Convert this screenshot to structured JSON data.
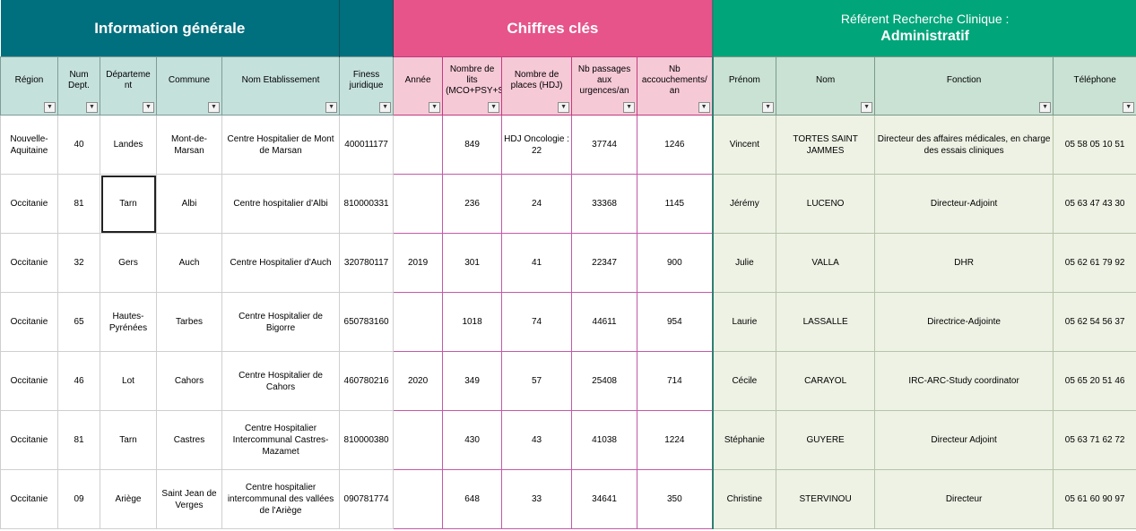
{
  "sections": {
    "info": "Information générale",
    "chiffres": "Chiffres clés",
    "referent_line1": "Référent Recherche Clinique :",
    "referent_line2": "Administratif"
  },
  "headers": {
    "region": "Région",
    "num_dept": "Num Dept.",
    "departement": "Départeme nt",
    "commune": "Commune",
    "etablissement": "Nom Etablissement",
    "finess": "Finess juridique",
    "annee": "Année",
    "lits": "Nombre de lits (MCO+PSY+SSR)",
    "places": "Nombre de places (HDJ)",
    "passages": "Nb passages aux urgences/an",
    "accouchements": "Nb accouchements/ an",
    "prenom": "Prénom",
    "nom": "Nom",
    "fonction": "Fonction",
    "telephone": "Téléphone"
  },
  "filter_glyph": "▼",
  "rows": [
    {
      "region": "Nouvelle-Aquitaine",
      "num_dept": "40",
      "departement": "Landes",
      "commune": "Mont-de-Marsan",
      "etablissement": "Centre Hospitalier de Mont de Marsan",
      "finess": "400011177",
      "annee": "",
      "lits": "849",
      "places": "HDJ Oncologie : 22",
      "passages": "37744",
      "accouchements": "1246",
      "prenom": "Vincent",
      "nom": "TORTES SAINT JAMMES",
      "fonction": "Directeur des affaires médicales, en charge des essais cliniques",
      "telephone": "05 58 05 10 51"
    },
    {
      "region": "Occitanie",
      "num_dept": "81",
      "departement": "Tarn",
      "commune": "Albi",
      "etablissement": "Centre hospitalier d'Albi",
      "finess": "810000331",
      "annee": "",
      "lits": "236",
      "places": "24",
      "passages": "33368",
      "accouchements": "1145",
      "prenom": "Jérémy",
      "nom": "LUCENO",
      "fonction": "Directeur-Adjoint",
      "telephone": "05 63 47 43 30"
    },
    {
      "region": "Occitanie",
      "num_dept": "32",
      "departement": "Gers",
      "commune": "Auch",
      "etablissement": "Centre Hospitalier d'Auch",
      "finess": "320780117",
      "annee": "2019",
      "lits": "301",
      "places": "41",
      "passages": "22347",
      "accouchements": "900",
      "prenom": "Julie",
      "nom": "VALLA",
      "fonction": "DHR",
      "telephone": "05 62 61 79 92"
    },
    {
      "region": "Occitanie",
      "num_dept": "65",
      "departement": "Hautes-Pyrénées",
      "commune": "Tarbes",
      "etablissement": "Centre Hospitalier de Bigorre",
      "finess": "650783160",
      "annee": "",
      "lits": "1018",
      "places": "74",
      "passages": "44611",
      "accouchements": "954",
      "prenom": "Laurie",
      "nom": "LASSALLE",
      "fonction": "Directrice-Adjointe",
      "telephone": "05 62 54 56 37"
    },
    {
      "region": "Occitanie",
      "num_dept": "46",
      "departement": "Lot",
      "commune": "Cahors",
      "etablissement": "Centre Hospitalier de Cahors",
      "finess": "460780216",
      "annee": "2020",
      "lits": "349",
      "places": "57",
      "passages": "25408",
      "accouchements": "714",
      "prenom": "Cécile",
      "nom": "CARAYOL",
      "fonction": "IRC-ARC-Study coordinator",
      "telephone": "05 65 20 51 46"
    },
    {
      "region": "Occitanie",
      "num_dept": "81",
      "departement": "Tarn",
      "commune": "Castres",
      "etablissement": "Centre Hospitalier Intercommunal Castres-Mazamet",
      "finess": "810000380",
      "annee": "",
      "lits": "430",
      "places": "43",
      "passages": "41038",
      "accouchements": "1224",
      "prenom": "Stéphanie",
      "nom": "GUYERE",
      "fonction": "Directeur Adjoint",
      "telephone": "05 63 71 62 72"
    },
    {
      "region": "Occitanie",
      "num_dept": "09",
      "departement": "Ariège",
      "commune": "Saint Jean de Verges",
      "etablissement": "Centre hospitalier intercommunal des vallées de l'Ariège",
      "finess": "090781774",
      "annee": "",
      "lits": "648",
      "places": "33",
      "passages": "34641",
      "accouchements": "350",
      "prenom": "Christine",
      "nom": "STERVINOU",
      "fonction": "Directeur",
      "telephone": "05 61 60 90 97"
    }
  ]
}
